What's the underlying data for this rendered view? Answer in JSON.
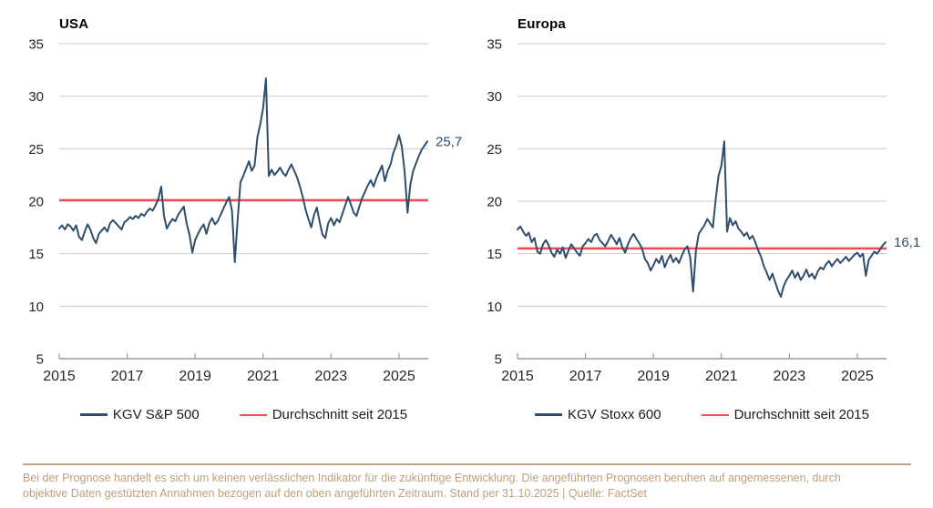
{
  "colors": {
    "series_line": "#2f4e6e",
    "average_line": "#f04b50",
    "grid": "#cbcbcb",
    "axis": "#9a9a9a",
    "tick_label": "#262626",
    "title": "#000000",
    "footer_text": "#bf9e7b"
  },
  "chart_data": [
    {
      "type": "line",
      "title": "USA",
      "end_label": "25,7",
      "xlim": [
        2015,
        2025.86
      ],
      "ylim": [
        5,
        35
      ],
      "x_ticks": [
        2015,
        2017,
        2019,
        2021,
        2023,
        2025
      ],
      "y_ticks": [
        5,
        10,
        15,
        20,
        25,
        30,
        35
      ],
      "grid": true,
      "legend_position": "bottom",
      "x_start": 2015,
      "x_step_years": 0.0833333,
      "series": [
        {
          "name": "KGV S&P 500",
          "color": "#2f4e6e",
          "y_monthly": [
            17.4,
            17.7,
            17.3,
            17.8,
            17.6,
            17.2,
            17.7,
            16.6,
            16.3,
            17.1,
            17.8,
            17.3,
            16.5,
            16.0,
            16.9,
            17.2,
            17.5,
            17.1,
            17.9,
            18.2,
            17.9,
            17.6,
            17.3,
            18.0,
            18.2,
            18.5,
            18.3,
            18.6,
            18.4,
            18.8,
            18.6,
            19.0,
            19.3,
            19.1,
            19.6,
            20.2,
            21.4,
            18.6,
            17.4,
            17.9,
            18.3,
            18.1,
            18.7,
            19.1,
            19.5,
            17.9,
            16.8,
            15.1,
            16.3,
            16.9,
            17.4,
            17.8,
            16.9,
            17.9,
            18.4,
            17.8,
            18.1,
            18.7,
            19.3,
            19.9,
            20.4,
            19.1,
            14.2,
            18.2,
            21.8,
            22.4,
            23.1,
            23.8,
            22.9,
            23.4,
            26.1,
            27.3,
            28.9,
            31.7,
            22.4,
            23.0,
            22.5,
            22.8,
            23.2,
            22.7,
            22.4,
            23.0,
            23.5,
            22.9,
            22.3,
            21.4,
            20.4,
            19.2,
            18.3,
            17.5,
            18.7,
            19.4,
            18.0,
            16.8,
            16.5,
            17.9,
            18.4,
            17.7,
            18.3,
            18.0,
            18.8,
            19.6,
            20.4,
            19.7,
            18.9,
            18.6,
            19.5,
            20.3,
            20.9,
            21.5,
            22.0,
            21.4,
            22.2,
            22.8,
            23.4,
            21.9,
            22.9,
            23.5,
            24.6,
            25.3,
            26.3,
            25.2,
            22.8,
            18.9,
            21.6,
            22.9,
            23.6,
            24.3,
            24.9,
            25.3,
            25.7
          ]
        },
        {
          "name": "Durchschnitt seit 2015",
          "color": "#f04b50",
          "value": 20.1
        }
      ]
    },
    {
      "type": "line",
      "title": "Europa",
      "end_label": "16,1",
      "xlim": [
        2015,
        2025.86
      ],
      "ylim": [
        5,
        35
      ],
      "x_ticks": [
        2015,
        2017,
        2019,
        2021,
        2023,
        2025
      ],
      "y_ticks": [
        5,
        10,
        15,
        20,
        25,
        30,
        35
      ],
      "grid": true,
      "legend_position": "bottom",
      "x_start": 2015,
      "x_step_years": 0.0833333,
      "series": [
        {
          "name": "KGV Stoxx 600",
          "color": "#2f4e6e",
          "y_monthly": [
            17.3,
            17.6,
            17.1,
            16.7,
            17.0,
            16.1,
            16.5,
            15.2,
            15.0,
            15.9,
            16.3,
            15.8,
            15.1,
            14.7,
            15.4,
            15.0,
            15.6,
            14.6,
            15.3,
            15.9,
            15.5,
            15.1,
            14.8,
            15.7,
            16.0,
            16.4,
            16.1,
            16.7,
            16.9,
            16.3,
            16.0,
            15.7,
            16.2,
            16.8,
            16.4,
            15.9,
            16.5,
            15.6,
            15.1,
            15.9,
            16.5,
            16.9,
            16.4,
            16.0,
            15.5,
            14.5,
            14.1,
            13.4,
            13.9,
            14.5,
            14.1,
            14.8,
            13.7,
            14.4,
            14.9,
            14.2,
            14.6,
            14.1,
            14.8,
            15.4,
            15.7,
            14.6,
            11.4,
            15.3,
            16.9,
            17.3,
            17.7,
            18.3,
            17.9,
            17.5,
            20.2,
            22.4,
            23.4,
            25.7,
            17.1,
            18.4,
            17.7,
            18.1,
            17.4,
            17.1,
            16.7,
            17.0,
            16.4,
            16.7,
            16.1,
            15.3,
            14.7,
            13.8,
            13.2,
            12.5,
            13.1,
            12.3,
            11.5,
            10.9,
            11.9,
            12.5,
            12.9,
            13.4,
            12.7,
            13.2,
            12.5,
            12.9,
            13.5,
            12.8,
            13.1,
            12.6,
            13.3,
            13.7,
            13.5,
            14.0,
            14.3,
            13.8,
            14.2,
            14.5,
            14.1,
            14.4,
            14.7,
            14.3,
            14.6,
            14.9,
            15.1,
            14.7,
            15.0,
            12.9,
            14.4,
            14.8,
            15.2,
            15.0,
            15.4,
            15.8,
            16.1
          ]
        },
        {
          "name": "Durchschnitt seit 2015",
          "color": "#f04b50",
          "value": 15.5
        }
      ]
    }
  ],
  "footer": {
    "line1": "Bei der Prognose handelt es sich um keinen verlässlichen Indikator für die zukünftige Entwicklung. Die angeführten Prognosen beruhen auf angemessenen, durch",
    "line2": "objektive Daten gestützten Annahmen bezogen auf den oben angeführten Zeitraum. Stand per 31.10.2025 | Quelle: FactSet"
  }
}
